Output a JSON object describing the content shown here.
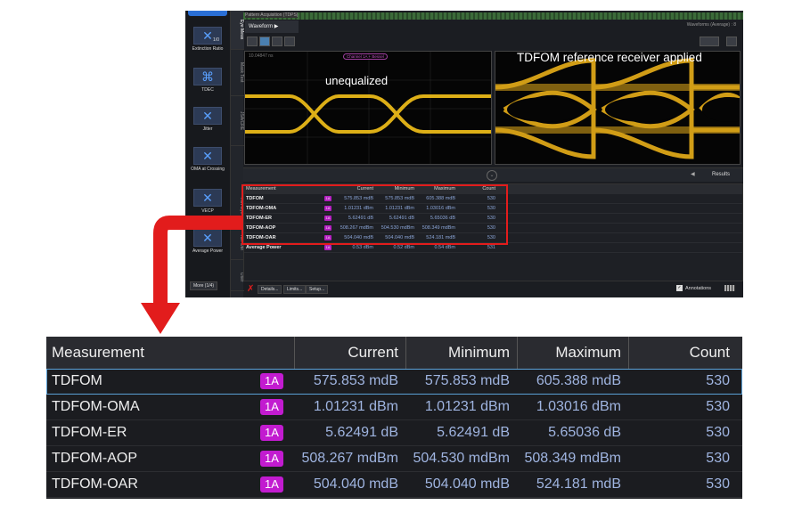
{
  "toolbox": {
    "items": [
      {
        "label": "Extinction Ratio",
        "icon": "extinction-ratio-icon",
        "sub": "1/0"
      },
      {
        "label": "TDEC",
        "icon": "tdec-eye-icon"
      },
      {
        "label": "Jitter",
        "icon": "jitter-icon"
      },
      {
        "label": "OMA at Crossing",
        "icon": "oma-icon"
      },
      {
        "label": "VECP",
        "icon": "vecp-icon"
      },
      {
        "label": "Average Power",
        "icon": "average-power-icon"
      }
    ],
    "more": "More (1/4)"
  },
  "vtabs": [
    "Eye Meas",
    "Mask Test",
    "JSA/CRE",
    "Adv Eye",
    "TDFOM",
    "User"
  ],
  "pattern_bar": "Pattern Acquisition (TDPS)",
  "waveform_tab": "Waveform",
  "waveforms_avg": "Waveforms (Average) : 8",
  "eye_left": {
    "timestamp": "10.04847 ns",
    "channel": "Channel 1A + Bessel",
    "annotation": "unequalized"
  },
  "eye_right": {
    "annotation": "TDFOM reference receiver applied"
  },
  "results_label": "Results",
  "colors": {
    "trace": "#f5c21a",
    "badge": "#c21bd0",
    "highlight": "#e21c1c",
    "accent": "#2a6fd6"
  },
  "table": {
    "headers": [
      "Measurement",
      "Current",
      "Minimum",
      "Maximum",
      "Count"
    ],
    "rows": [
      {
        "name": "TDFOM",
        "badge": "1A",
        "current": "575.853 mdB",
        "min": "575.853 mdB",
        "max": "605.388 mdB",
        "count": "530"
      },
      {
        "name": "TDFOM-OMA",
        "badge": "1A",
        "current": "1.01231 dBm",
        "min": "1.01231 dBm",
        "max": "1.03016 dBm",
        "count": "530"
      },
      {
        "name": "TDFOM-ER",
        "badge": "1A",
        "current": "5.62491 dB",
        "min": "5.62491 dB",
        "max": "5.65036 dB",
        "count": "530"
      },
      {
        "name": "TDFOM-AOP",
        "badge": "1A",
        "current": "508.267 mdBm",
        "min": "504.530 mdBm",
        "max": "508.349 mdBm",
        "count": "530"
      },
      {
        "name": "TDFOM-OAR",
        "badge": "1A",
        "current": "504.040 mdB",
        "min": "504.040 mdB",
        "max": "524.181 mdB",
        "count": "530"
      },
      {
        "name": "Average Power",
        "badge": "1A",
        "current": "0.53 dBm",
        "min": "0.52 dBm",
        "max": "0.54 dBm",
        "count": "531"
      }
    ]
  },
  "bottom": {
    "details": "Details...",
    "limits": "Limits...",
    "setup": "Setup...",
    "annotations": "Annotations"
  }
}
